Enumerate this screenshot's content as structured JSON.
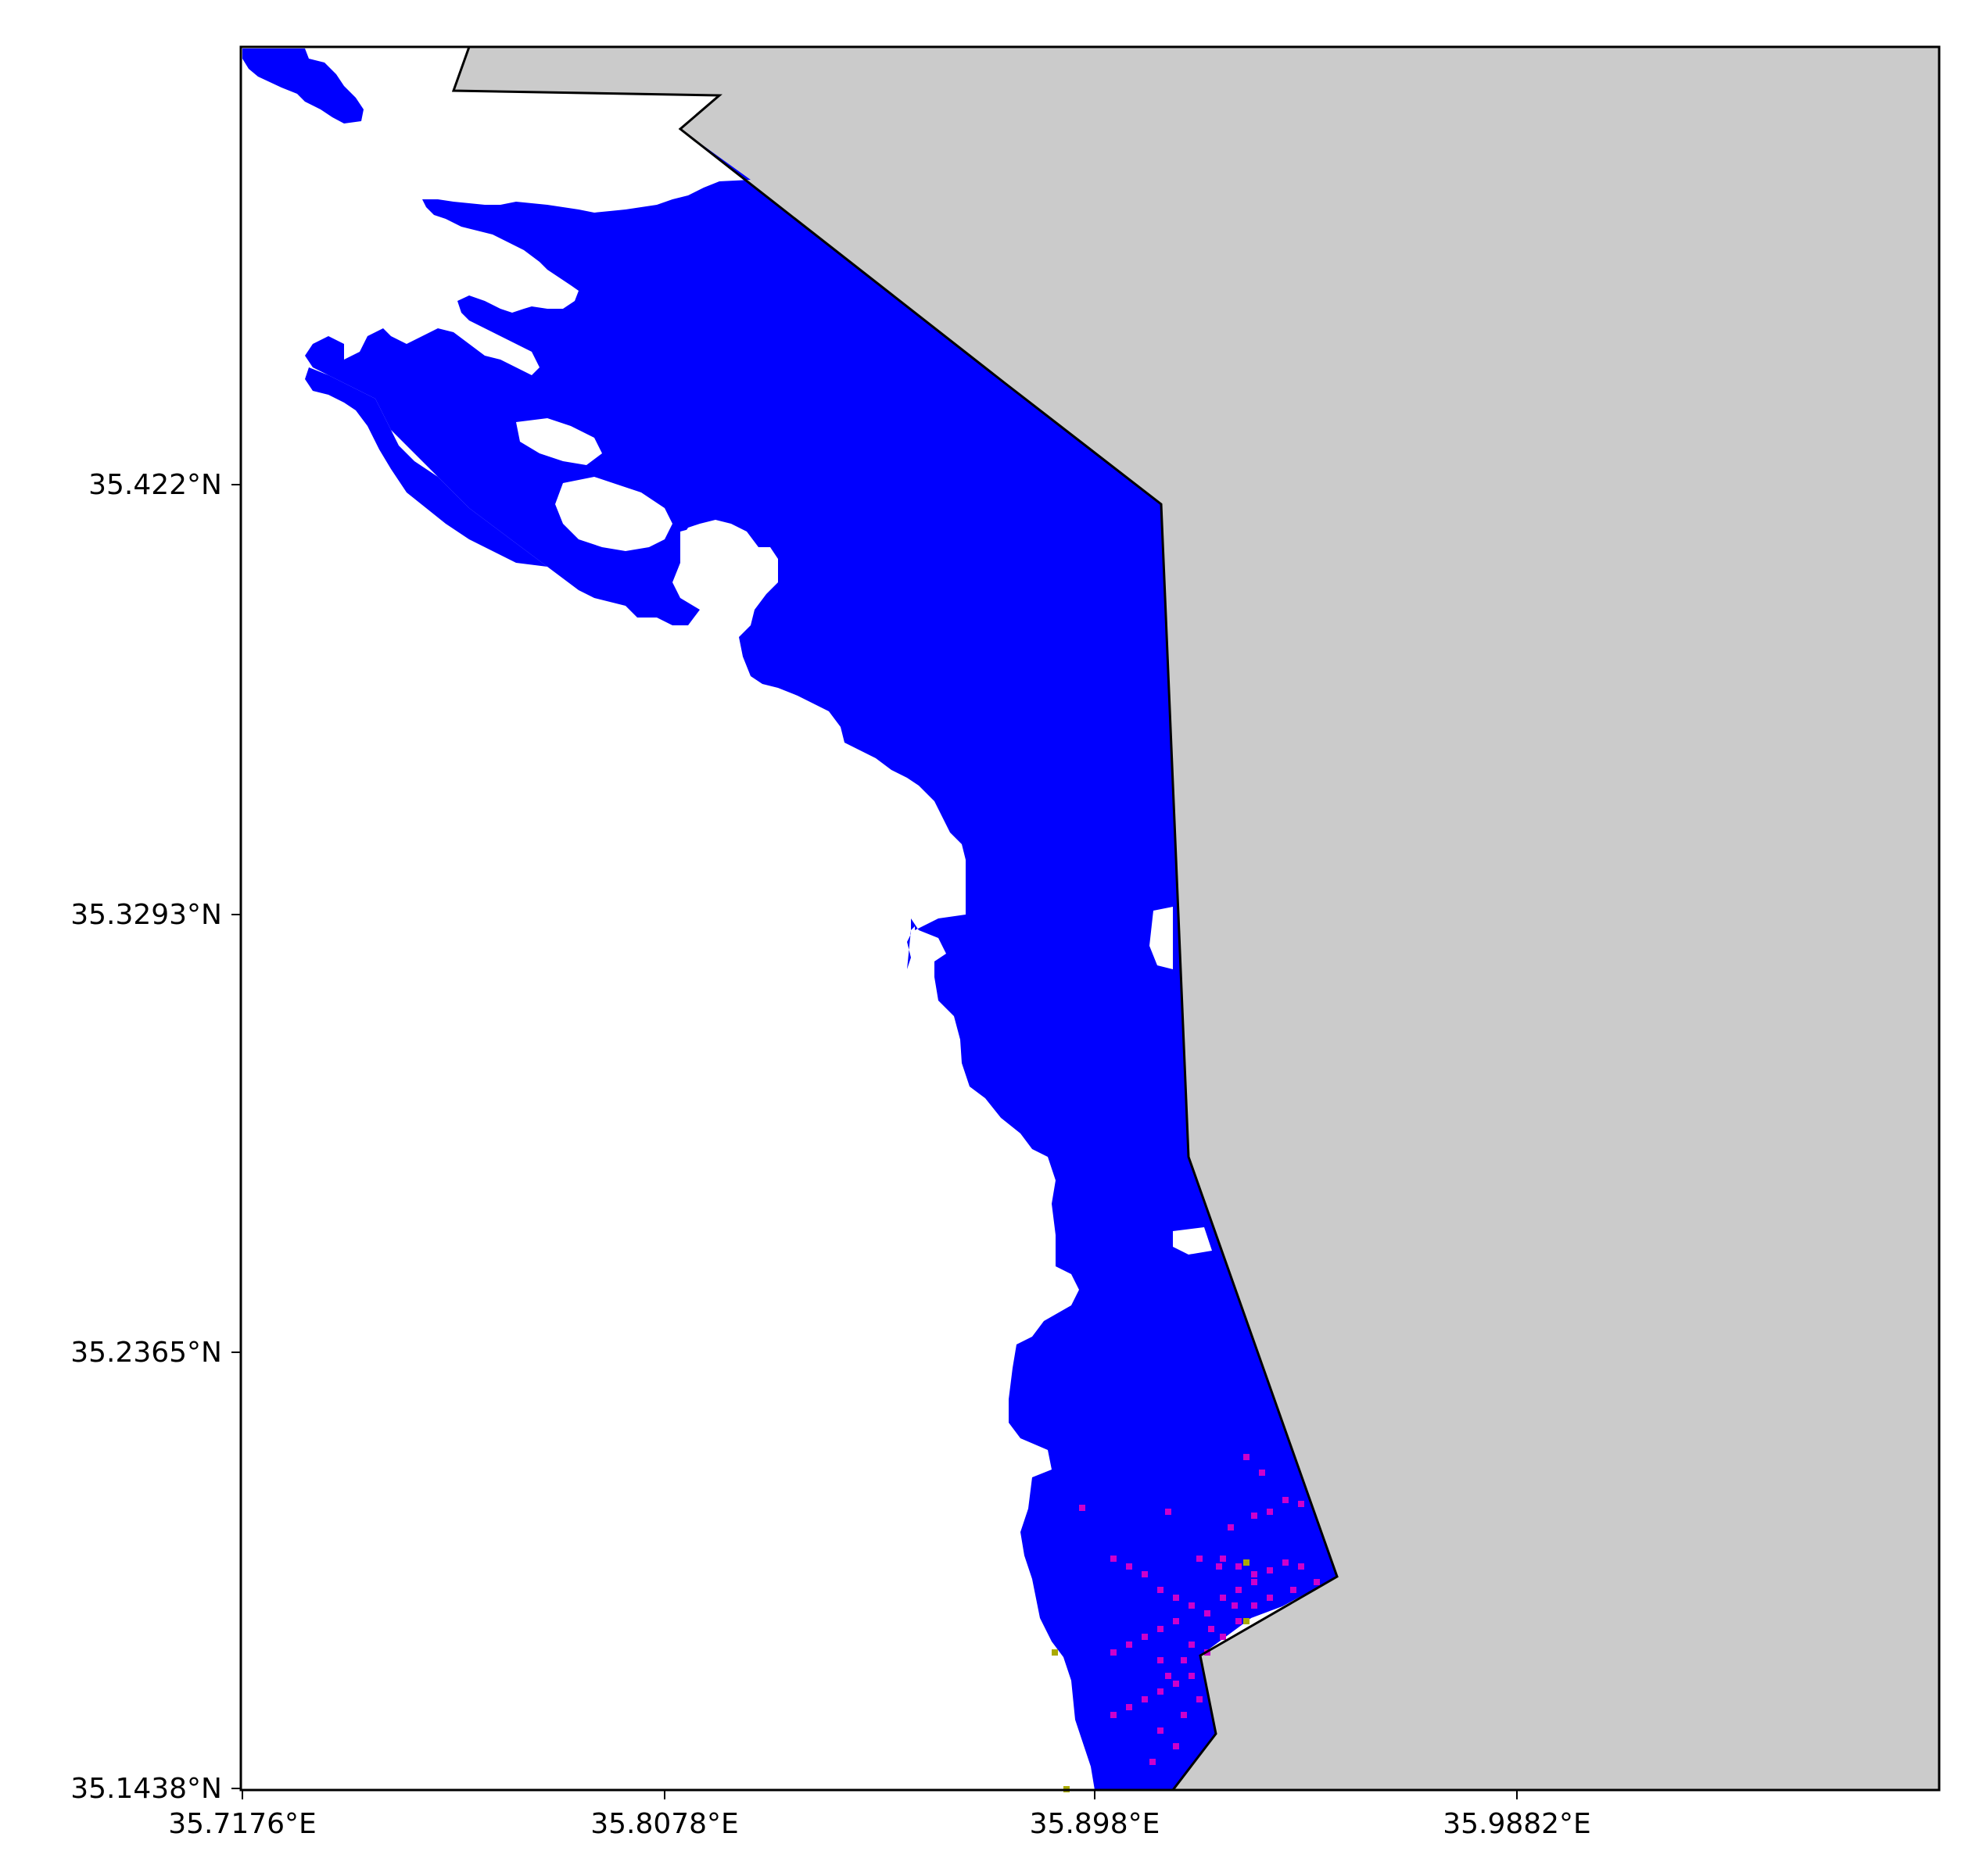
{
  "map": {
    "land_color": "#cbcbcb",
    "water_color": "#0000ff",
    "background_color": "#ffffff",
    "hotspot_color": "#cc00cc",
    "minor_color": "#aaaa00",
    "border_color": "#000000",
    "y_ticks": [
      "35.422°N",
      "35.3293°N",
      "35.2365°N",
      "35.1438°N"
    ],
    "x_ticks": [
      "35.7176°E",
      "35.8078°E",
      "35.898°E",
      "35.9882°E"
    ]
  }
}
